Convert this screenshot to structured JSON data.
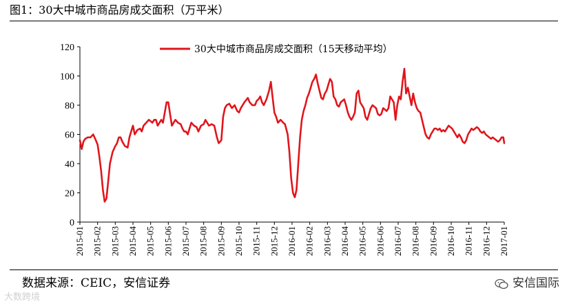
{
  "header": {
    "title": "图1：30大中城市商品房成交面积（万平米）"
  },
  "footer": {
    "source": "数据来源：CEIC，安信证券",
    "brand": "安信国际",
    "brand_icon": "wechat-icon",
    "watermark": "大数跨境"
  },
  "chart_data": {
    "type": "line",
    "title": "图1：30大中城市商品房成交面积（万平米）",
    "xlabel": "",
    "ylabel": "",
    "ylim": [
      0,
      120
    ],
    "yticks": [
      "0",
      "20",
      "40",
      "60",
      "80",
      "100",
      "120"
    ],
    "categories": [
      "2015-01",
      "2015-02",
      "2015-03",
      "2015-04",
      "2015-05",
      "2015-06",
      "2015-07",
      "2015-08",
      "2015-09",
      "2015-10",
      "2015-11",
      "2015-12",
      "2016-01",
      "2016-02",
      "2016-03",
      "2016-04",
      "2016-05",
      "2016-06",
      "2016-07",
      "2016-08",
      "2016-09",
      "2016-10",
      "2016-11",
      "2016-12",
      "2017-01"
    ],
    "grid": false,
    "legend": {
      "position": "top-center"
    },
    "series": [
      {
        "name": "30大中城市商品房成交面积（15天移动平均）",
        "color": "#e0151b",
        "points": [
          [
            0.0,
            56
          ],
          [
            0.1,
            50
          ],
          [
            0.2,
            55
          ],
          [
            0.3,
            57
          ],
          [
            0.45,
            58
          ],
          [
            0.6,
            58
          ],
          [
            0.75,
            60
          ],
          [
            0.9,
            56
          ],
          [
            1.0,
            53
          ],
          [
            1.1,
            45
          ],
          [
            1.2,
            35
          ],
          [
            1.3,
            22
          ],
          [
            1.4,
            14
          ],
          [
            1.5,
            16
          ],
          [
            1.6,
            28
          ],
          [
            1.7,
            40
          ],
          [
            1.85,
            48
          ],
          [
            2.0,
            52
          ],
          [
            2.1,
            54
          ],
          [
            2.2,
            58
          ],
          [
            2.3,
            58
          ],
          [
            2.4,
            55
          ],
          [
            2.55,
            52
          ],
          [
            2.7,
            51
          ],
          [
            2.8,
            58
          ],
          [
            2.9,
            62
          ],
          [
            3.0,
            66
          ],
          [
            3.1,
            60
          ],
          [
            3.25,
            63
          ],
          [
            3.4,
            64
          ],
          [
            3.5,
            62
          ],
          [
            3.6,
            66
          ],
          [
            3.75,
            68
          ],
          [
            3.9,
            70
          ],
          [
            4.0,
            69
          ],
          [
            4.1,
            68
          ],
          [
            4.2,
            70
          ],
          [
            4.3,
            70
          ],
          [
            4.4,
            66
          ],
          [
            4.5,
            68
          ],
          [
            4.6,
            70
          ],
          [
            4.7,
            68
          ],
          [
            4.8,
            75
          ],
          [
            4.9,
            82
          ],
          [
            5.0,
            82
          ],
          [
            5.1,
            74
          ],
          [
            5.2,
            66
          ],
          [
            5.3,
            68
          ],
          [
            5.4,
            70
          ],
          [
            5.55,
            68
          ],
          [
            5.7,
            67
          ],
          [
            5.8,
            64
          ],
          [
            5.9,
            62
          ],
          [
            6.0,
            62
          ],
          [
            6.1,
            60
          ],
          [
            6.2,
            64
          ],
          [
            6.3,
            68
          ],
          [
            6.45,
            66
          ],
          [
            6.6,
            65
          ],
          [
            6.7,
            62
          ],
          [
            6.85,
            66
          ],
          [
            7.0,
            67
          ],
          [
            7.1,
            70
          ],
          [
            7.2,
            68
          ],
          [
            7.3,
            66
          ],
          [
            7.45,
            67
          ],
          [
            7.6,
            66
          ],
          [
            7.75,
            58
          ],
          [
            7.85,
            54
          ],
          [
            8.0,
            56
          ],
          [
            8.1,
            72
          ],
          [
            8.2,
            78
          ],
          [
            8.3,
            80
          ],
          [
            8.45,
            81
          ],
          [
            8.6,
            78
          ],
          [
            8.75,
            80
          ],
          [
            8.9,
            76
          ],
          [
            9.0,
            75
          ],
          [
            9.1,
            78
          ],
          [
            9.3,
            82
          ],
          [
            9.5,
            85
          ],
          [
            9.6,
            82
          ],
          [
            9.75,
            80
          ],
          [
            9.9,
            80
          ],
          [
            10.0,
            83
          ],
          [
            10.1,
            84
          ],
          [
            10.2,
            86
          ],
          [
            10.3,
            82
          ],
          [
            10.4,
            80
          ],
          [
            10.55,
            84
          ],
          [
            10.7,
            90
          ],
          [
            10.8,
            96
          ],
          [
            10.9,
            85
          ],
          [
            11.0,
            75
          ],
          [
            11.1,
            72
          ],
          [
            11.2,
            68
          ],
          [
            11.35,
            70
          ],
          [
            11.5,
            68
          ],
          [
            11.6,
            67
          ],
          [
            11.75,
            60
          ],
          [
            11.85,
            48
          ],
          [
            11.95,
            30
          ],
          [
            12.05,
            20
          ],
          [
            12.15,
            17
          ],
          [
            12.25,
            22
          ],
          [
            12.35,
            40
          ],
          [
            12.45,
            58
          ],
          [
            12.55,
            70
          ],
          [
            12.65,
            76
          ],
          [
            12.75,
            80
          ],
          [
            12.85,
            85
          ],
          [
            12.95,
            88
          ],
          [
            13.05,
            92
          ],
          [
            13.15,
            96
          ],
          [
            13.25,
            98
          ],
          [
            13.35,
            101
          ],
          [
            13.45,
            95
          ],
          [
            13.55,
            90
          ],
          [
            13.65,
            85
          ],
          [
            13.75,
            84
          ],
          [
            13.85,
            88
          ],
          [
            13.95,
            90
          ],
          [
            14.05,
            94
          ],
          [
            14.15,
            98
          ],
          [
            14.25,
            96
          ],
          [
            14.35,
            86
          ],
          [
            14.45,
            84
          ],
          [
            14.55,
            80
          ],
          [
            14.65,
            79
          ],
          [
            14.75,
            82
          ],
          [
            14.85,
            83
          ],
          [
            14.95,
            84
          ],
          [
            15.05,
            80
          ],
          [
            15.15,
            75
          ],
          [
            15.25,
            72
          ],
          [
            15.35,
            70
          ],
          [
            15.45,
            72
          ],
          [
            15.55,
            75
          ],
          [
            15.65,
            88
          ],
          [
            15.75,
            90
          ],
          [
            15.85,
            82
          ],
          [
            15.95,
            80
          ],
          [
            16.05,
            78
          ],
          [
            16.15,
            72
          ],
          [
            16.25,
            70
          ],
          [
            16.35,
            74
          ],
          [
            16.45,
            78
          ],
          [
            16.55,
            80
          ],
          [
            16.65,
            79
          ],
          [
            16.75,
            78
          ],
          [
            16.85,
            74
          ],
          [
            16.95,
            73
          ],
          [
            17.05,
            74
          ],
          [
            17.15,
            78
          ],
          [
            17.25,
            77
          ],
          [
            17.35,
            76
          ],
          [
            17.45,
            78
          ],
          [
            17.55,
            86
          ],
          [
            17.65,
            84
          ],
          [
            17.75,
            82
          ],
          [
            17.85,
            70
          ],
          [
            17.95,
            80
          ],
          [
            18.05,
            86
          ],
          [
            18.15,
            84
          ],
          [
            18.25,
            96
          ],
          [
            18.35,
            105
          ],
          [
            18.45,
            88
          ],
          [
            18.55,
            92
          ],
          [
            18.65,
            86
          ],
          [
            18.75,
            80
          ],
          [
            18.85,
            88
          ],
          [
            18.95,
            82
          ],
          [
            19.05,
            78
          ],
          [
            19.15,
            76
          ],
          [
            19.25,
            75
          ],
          [
            19.35,
            70
          ],
          [
            19.45,
            65
          ],
          [
            19.55,
            60
          ],
          [
            19.65,
            58
          ],
          [
            19.75,
            57
          ],
          [
            19.85,
            60
          ],
          [
            19.95,
            62
          ],
          [
            20.05,
            64
          ],
          [
            20.15,
            64
          ],
          [
            20.25,
            63
          ],
          [
            20.35,
            64
          ],
          [
            20.45,
            62
          ],
          [
            20.55,
            63
          ],
          [
            20.65,
            62
          ],
          [
            20.75,
            64
          ],
          [
            20.85,
            66
          ],
          [
            20.95,
            65
          ],
          [
            21.05,
            64
          ],
          [
            21.15,
            62
          ],
          [
            21.25,
            60
          ],
          [
            21.35,
            58
          ],
          [
            21.45,
            60
          ],
          [
            21.55,
            58
          ],
          [
            21.65,
            55
          ],
          [
            21.75,
            54
          ],
          [
            21.85,
            56
          ],
          [
            21.95,
            60
          ],
          [
            22.05,
            62
          ],
          [
            22.15,
            64
          ],
          [
            22.25,
            63
          ],
          [
            22.35,
            64
          ],
          [
            22.45,
            65
          ],
          [
            22.55,
            64
          ],
          [
            22.65,
            62
          ],
          [
            22.75,
            61
          ],
          [
            22.85,
            62
          ],
          [
            22.95,
            60
          ],
          [
            23.05,
            59
          ],
          [
            23.15,
            58
          ],
          [
            23.25,
            57
          ],
          [
            23.35,
            58
          ],
          [
            23.45,
            57
          ],
          [
            23.55,
            56
          ],
          [
            23.65,
            55
          ],
          [
            23.75,
            56
          ],
          [
            23.85,
            58
          ],
          [
            23.95,
            58
          ],
          [
            24.0,
            54
          ]
        ]
      }
    ]
  }
}
